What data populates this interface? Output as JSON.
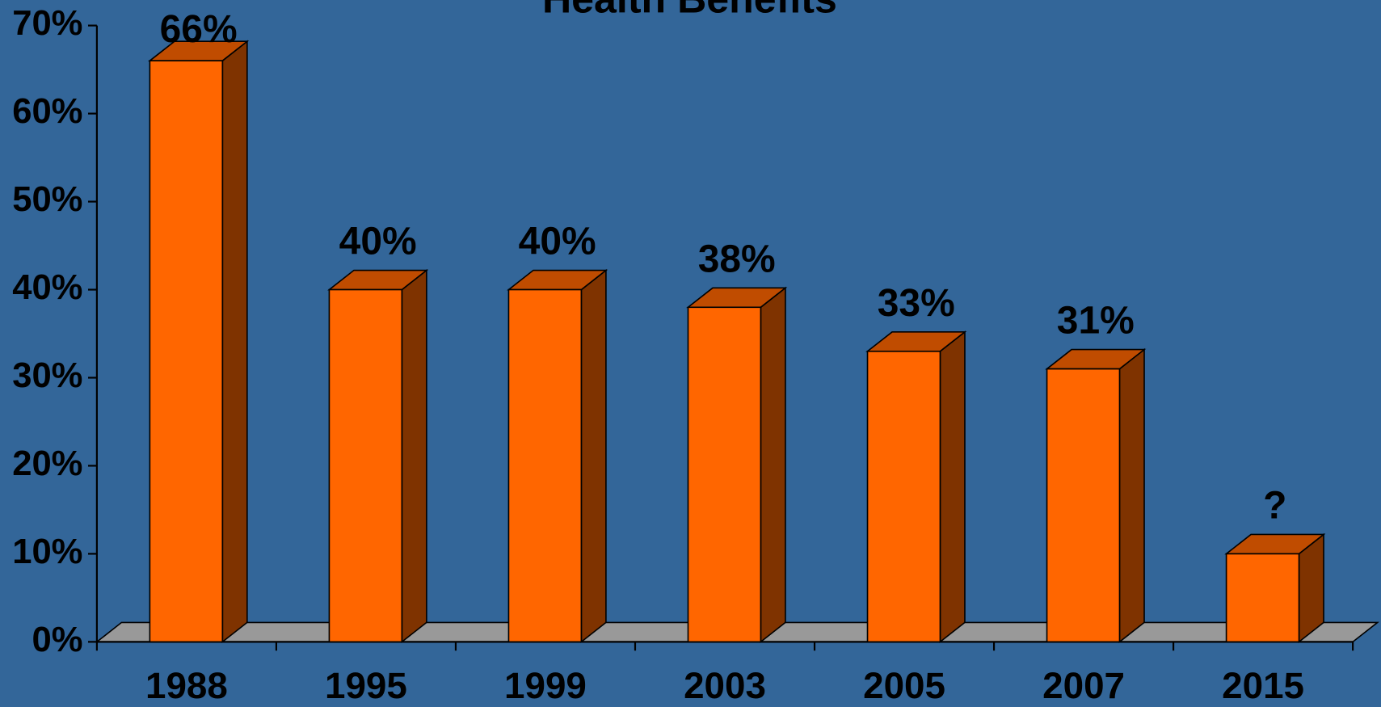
{
  "chart_data": {
    "type": "bar3d",
    "title": "Health Benefits",
    "categories": [
      "1988",
      "1995",
      "1999",
      "2003",
      "2005",
      "2007",
      "2015"
    ],
    "values": [
      66,
      40,
      40,
      38,
      33,
      31,
      10
    ],
    "value_labels": [
      "66%",
      "40%",
      "40%",
      "38%",
      "33%",
      "31%",
      "?"
    ],
    "color": "#ff6600",
    "ylim": [
      0,
      70
    ],
    "yticks": [
      {
        "value": 0,
        "label": "0%"
      },
      {
        "value": 10,
        "label": "10%"
      },
      {
        "value": 20,
        "label": "20%"
      },
      {
        "value": 30,
        "label": "30%"
      },
      {
        "value": 40,
        "label": "40%"
      },
      {
        "value": 50,
        "label": "50%"
      },
      {
        "value": 60,
        "label": "60%"
      },
      {
        "value": 70,
        "label": "70%"
      }
    ]
  }
}
